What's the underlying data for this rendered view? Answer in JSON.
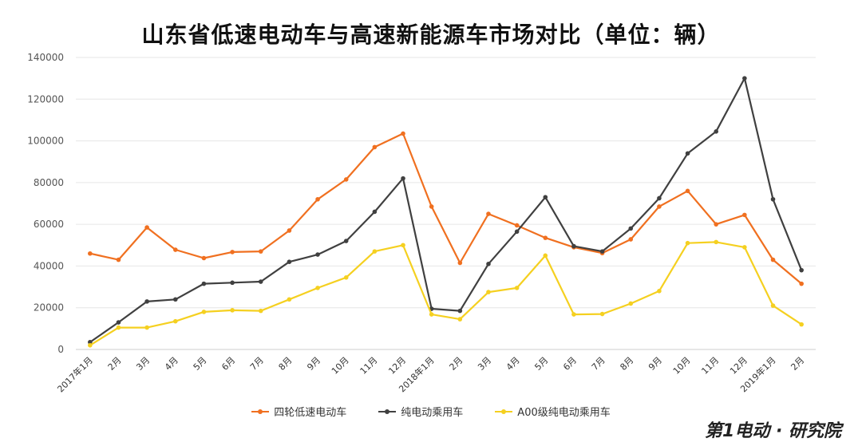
{
  "chart_data": {
    "type": "line",
    "title": "山东省低速电动车与高速新能源车市场对比（单位：辆）",
    "xlabel": "",
    "ylabel": "",
    "ylim": [
      0,
      140000
    ],
    "yticks": [
      0,
      20000,
      40000,
      60000,
      80000,
      100000,
      120000,
      140000
    ],
    "grid": true,
    "legend_position": "bottom",
    "categories": [
      "2017年1月",
      "2月",
      "3月",
      "4月",
      "5月",
      "6月",
      "7月",
      "8月",
      "9月",
      "10月",
      "11月",
      "12月",
      "2018年1月",
      "2月",
      "3月",
      "4月",
      "5月",
      "6月",
      "7月",
      "8月",
      "9月",
      "10月",
      "11月",
      "12月",
      "2019年1月",
      "2月"
    ],
    "series": [
      {
        "name": "四轮低速电动车",
        "color": "#f07020",
        "values": [
          46000,
          43000,
          58500,
          47800,
          43800,
          46700,
          47000,
          57000,
          72000,
          81500,
          97000,
          103500,
          68500,
          41500,
          65000,
          59500,
          53500,
          49000,
          46200,
          52800,
          68500,
          76000,
          60000,
          64500,
          43000,
          31500
        ]
      },
      {
        "name": "纯电动乘用车",
        "color": "#404040",
        "values": [
          3500,
          13000,
          23000,
          24000,
          31500,
          32000,
          32500,
          42000,
          45500,
          52000,
          66000,
          82000,
          19500,
          18500,
          41000,
          56500,
          73000,
          49500,
          47000,
          58000,
          72500,
          94000,
          104500,
          130000,
          72000,
          38000
        ]
      },
      {
        "name": "A00级纯电动乘用车",
        "color": "#f5d020",
        "values": [
          2000,
          10500,
          10500,
          13500,
          18000,
          18800,
          18500,
          24000,
          29500,
          34500,
          47000,
          50000,
          16800,
          14500,
          27500,
          29500,
          45000,
          16800,
          17000,
          22000,
          28000,
          51000,
          51500,
          49000,
          21000,
          12000
        ]
      }
    ]
  },
  "watermark": "第1电动 · 研究院"
}
